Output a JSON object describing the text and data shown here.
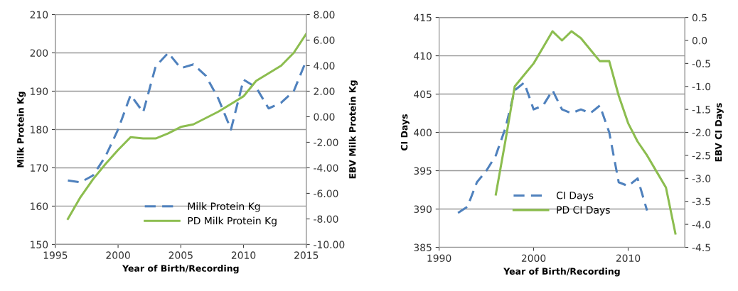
{
  "chart_data": [
    {
      "type": "line",
      "xlabel": "Year of Birth/Recording",
      "ylabel": "Milk Protein Kg",
      "y2label": "EBV Milk Protein Kg",
      "xlim": [
        1995,
        2015
      ],
      "xticks": [
        1995,
        2000,
        2005,
        2010,
        2015
      ],
      "ylim": [
        150,
        210
      ],
      "yticks": [
        150,
        160,
        170,
        180,
        190,
        200,
        210
      ],
      "y2lim": [
        -10,
        8
      ],
      "y2ticks": [
        {
          "value": -10,
          "label": "-10.00"
        },
        {
          "value": -8,
          "label": "-8.00"
        },
        {
          "value": -6,
          "label": "-6.00"
        },
        {
          "value": -4,
          "label": "-4.00"
        },
        {
          "value": -2,
          "label": "-2.00"
        },
        {
          "value": 0,
          "label": "0.00"
        },
        {
          "value": 2,
          "label": "2.00"
        },
        {
          "value": 4,
          "label": "4.00"
        },
        {
          "value": 6,
          "label": "6.00"
        },
        {
          "value": 8,
          "label": "8.00"
        }
      ],
      "grid": "y",
      "legend": "bottom right",
      "x": [
        1996,
        1997,
        1998,
        1999,
        2000,
        2001,
        2002,
        2003,
        2004,
        2005,
        2006,
        2007,
        2008,
        2009,
        2010,
        2011,
        2012,
        2013,
        2014,
        2015
      ],
      "series": [
        {
          "name": "Milk Protein Kg",
          "color": "#4f81bd",
          "line_style": "dashed",
          "values": [
            166.7,
            166.2,
            168,
            173,
            180,
            189,
            184.5,
            196.5,
            200,
            196,
            197,
            194,
            188,
            180,
            193,
            191,
            185.5,
            187,
            190,
            198
          ]
        },
        {
          "name": "PD Milk Protein Kg",
          "color": "#8cbd4f",
          "line_style": "solid",
          "axis": "y2",
          "values": [
            -8.0,
            -6.3,
            -4.9,
            -3.7,
            -2.6,
            -1.6,
            -1.7,
            -1.7,
            -1.3,
            -0.8,
            -0.6,
            -0.1,
            0.4,
            1.0,
            1.6,
            2.8,
            3.4,
            4.0,
            5.0,
            6.5
          ]
        }
      ]
    },
    {
      "type": "line",
      "xlabel": "Year of Birth/Recording",
      "ylabel": "CI Days",
      "y2label": "EBV CI Days",
      "xlim": [
        1990,
        2016
      ],
      "xticks": [
        1990,
        2000,
        2010
      ],
      "ylim": [
        385,
        415
      ],
      "yticks": [
        385,
        390,
        395,
        400,
        405,
        410,
        415
      ],
      "y2lim": [
        -4.5,
        0.5
      ],
      "y2ticks": [
        {
          "value": -4.5,
          "label": "-4.5"
        },
        {
          "value": -4,
          "label": "-4.0"
        },
        {
          "value": -3.5,
          "label": "-3.5"
        },
        {
          "value": -3,
          "label": "-3.0"
        },
        {
          "value": -2.5,
          "label": "-2.5"
        },
        {
          "value": -2,
          "label": "-2.0"
        },
        {
          "value": -1.5,
          "label": "-1.5"
        },
        {
          "value": -1,
          "label": "-1.0"
        },
        {
          "value": -0.5,
          "label": "-0.5"
        },
        {
          "value": 0,
          "label": "0.0"
        },
        {
          "value": 0.5,
          "label": "0.5"
        }
      ],
      "grid": "y",
      "legend": "bottom",
      "series": [
        {
          "name": "CI Days",
          "color": "#4f81bd",
          "line_style": "dashed",
          "x": [
            1992,
            1993,
            1994,
            1995,
            1996,
            1997,
            1998,
            1999,
            2000,
            2001,
            2002,
            2003,
            2004,
            2005,
            2006,
            2007,
            2008,
            2009,
            2010,
            2011,
            2012
          ],
          "values": [
            389.5,
            390.3,
            393.5,
            395,
            397,
            400.5,
            405.5,
            406.5,
            403,
            403.5,
            405.5,
            403,
            402.5,
            403,
            402.5,
            403.5,
            400,
            393.5,
            393,
            394,
            389.8
          ]
        },
        {
          "name": "PD CI Days",
          "color": "#8cbd4f",
          "line_style": "solid",
          "axis": "y2",
          "x": [
            1996,
            1997,
            1998,
            1999,
            2000,
            2001,
            2002,
            2003,
            2004,
            2005,
            2006,
            2007,
            2008,
            2009,
            2010,
            2011,
            2012,
            2013,
            2014,
            2015
          ],
          "values": [
            -3.35,
            -2.2,
            -1.0,
            -0.75,
            -0.5,
            -0.15,
            0.2,
            0.0,
            0.2,
            0.05,
            -0.2,
            -0.45,
            -0.45,
            -1.2,
            -1.8,
            -2.2,
            -2.5,
            -2.85,
            -3.2,
            -4.2
          ]
        }
      ]
    }
  ]
}
